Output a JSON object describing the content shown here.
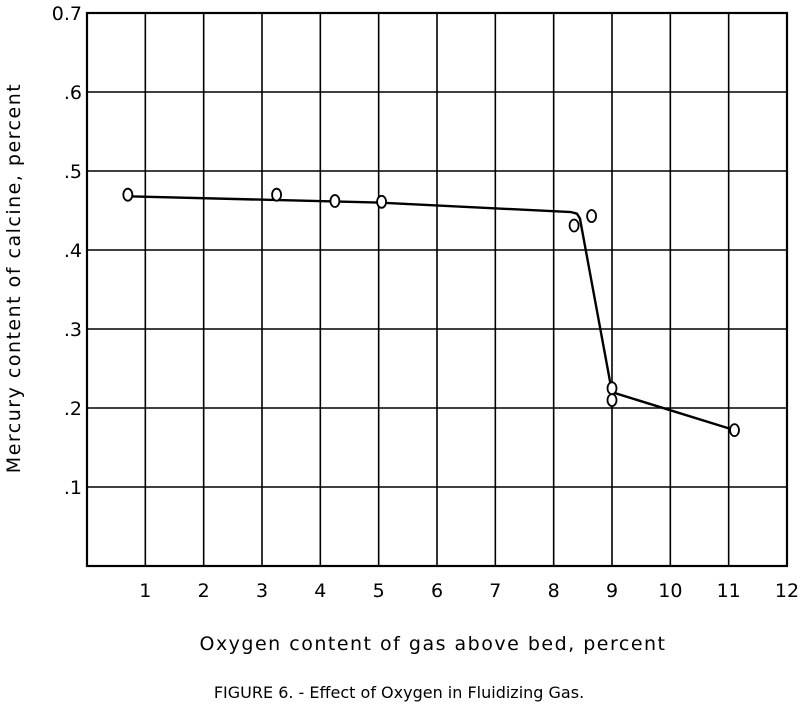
{
  "chart_data": {
    "type": "scatter",
    "title": "",
    "caption": "FIGURE 6. - Effect of Oxygen in Fluidizing Gas.",
    "xlabel": "Oxygen content of gas above bed, percent",
    "ylabel": "Mercury content of calcine, percent",
    "xlim": [
      0,
      12
    ],
    "ylim": [
      0,
      0.7
    ],
    "grid": true,
    "x_ticks": [
      {
        "value": 1,
        "label": "1"
      },
      {
        "value": 2,
        "label": "2"
      },
      {
        "value": 3,
        "label": "3"
      },
      {
        "value": 4,
        "label": "4"
      },
      {
        "value": 5,
        "label": "5"
      },
      {
        "value": 6,
        "label": "6"
      },
      {
        "value": 7,
        "label": "7"
      },
      {
        "value": 8,
        "label": "8"
      },
      {
        "value": 9,
        "label": "9"
      },
      {
        "value": 10,
        "label": "10"
      },
      {
        "value": 11,
        "label": "11"
      },
      {
        "value": 12,
        "label": "12"
      }
    ],
    "y_ticks": [
      {
        "value": 0.1,
        "label": ".1"
      },
      {
        "value": 0.2,
        "label": ".2"
      },
      {
        "value": 0.3,
        "label": ".3"
      },
      {
        "value": 0.4,
        "label": ".4"
      },
      {
        "value": 0.5,
        "label": ".5"
      },
      {
        "value": 0.6,
        "label": ".6"
      },
      {
        "value": 0.7,
        "label": "0.7"
      }
    ],
    "series": [
      {
        "marker": "open-circle",
        "x": [
          0.7,
          3.25,
          4.25,
          5.05,
          8.35,
          8.65,
          9.0,
          9.0,
          11.1
        ],
        "y": [
          0.47,
          0.47,
          0.462,
          0.461,
          0.431,
          0.443,
          0.225,
          0.21,
          0.172
        ]
      }
    ],
    "fit_line": {
      "x": [
        0.7,
        5.0,
        8.3,
        8.4,
        8.45,
        9.0,
        11.1
      ],
      "y": [
        0.468,
        0.46,
        0.448,
        0.446,
        0.44,
        0.22,
        0.172
      ]
    }
  }
}
